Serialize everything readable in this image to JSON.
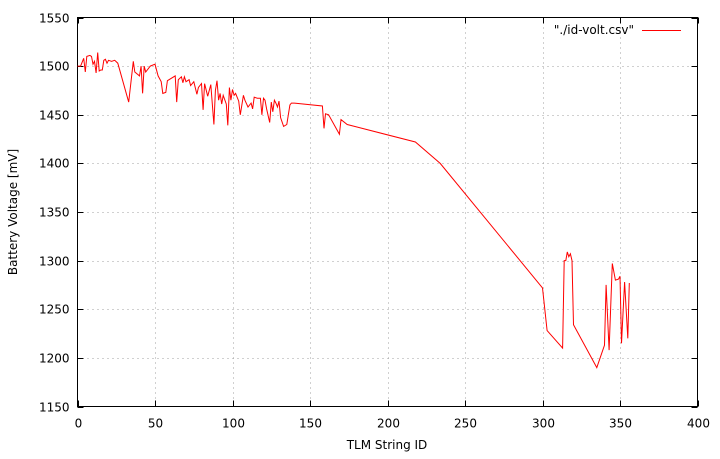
{
  "chart_data": {
    "type": "line",
    "title": "",
    "xlabel": "TLM String ID",
    "ylabel": "Battery Voltage [mV]",
    "xlim": [
      0,
      400
    ],
    "ylim": [
      1150,
      1550
    ],
    "xticks": [
      0,
      50,
      100,
      150,
      200,
      250,
      300,
      350,
      400
    ],
    "yticks": [
      1150,
      1200,
      1250,
      1300,
      1350,
      1400,
      1450,
      1500,
      1550
    ],
    "grid": true,
    "legend_position": "top-right",
    "series": [
      {
        "name": "\"./id-volt.csv\"",
        "color": "#ff0000",
        "points": [
          [
            0,
            1500
          ],
          [
            2,
            1500
          ],
          [
            4,
            1508
          ],
          [
            5,
            1494
          ],
          [
            6,
            1510
          ],
          [
            8,
            1511
          ],
          [
            9,
            1510
          ],
          [
            10,
            1502
          ],
          [
            11,
            1505
          ],
          [
            12,
            1493
          ],
          [
            13,
            1514
          ],
          [
            14,
            1495
          ],
          [
            15,
            1496
          ],
          [
            16,
            1496
          ],
          [
            17,
            1506
          ],
          [
            18,
            1507
          ],
          [
            19,
            1503
          ],
          [
            20,
            1506
          ],
          [
            22,
            1505
          ],
          [
            24,
            1506
          ],
          [
            26,
            1503
          ],
          [
            33,
            1463
          ],
          [
            36,
            1505
          ],
          [
            37,
            1494
          ],
          [
            40,
            1490
          ],
          [
            41,
            1500
          ],
          [
            42,
            1472
          ],
          [
            43,
            1500
          ],
          [
            44,
            1494
          ],
          [
            47,
            1500
          ],
          [
            50,
            1502
          ],
          [
            52,
            1490
          ],
          [
            54,
            1484
          ],
          [
            55,
            1472
          ],
          [
            57,
            1473
          ],
          [
            58,
            1485
          ],
          [
            63,
            1490
          ],
          [
            64,
            1463
          ],
          [
            65,
            1486
          ],
          [
            67,
            1489
          ],
          [
            68,
            1483
          ],
          [
            69,
            1489
          ],
          [
            70,
            1484
          ],
          [
            72,
            1486
          ],
          [
            73,
            1480
          ],
          [
            75,
            1484
          ],
          [
            77,
            1471
          ],
          [
            78,
            1478
          ],
          [
            80,
            1482
          ],
          [
            81,
            1455
          ],
          [
            82,
            1482
          ],
          [
            84,
            1469
          ],
          [
            86,
            1481
          ],
          [
            88,
            1440
          ],
          [
            89,
            1475
          ],
          [
            90,
            1485
          ],
          [
            91,
            1465
          ],
          [
            92,
            1472
          ],
          [
            93,
            1461
          ],
          [
            94,
            1470
          ],
          [
            96,
            1461
          ],
          [
            97,
            1439
          ],
          [
            98,
            1478
          ],
          [
            99,
            1465
          ],
          [
            100,
            1476
          ],
          [
            101,
            1470
          ],
          [
            102,
            1472
          ],
          [
            104,
            1464
          ],
          [
            105,
            1450
          ],
          [
            107,
            1470
          ],
          [
            108,
            1465
          ],
          [
            110,
            1458
          ],
          [
            112,
            1462
          ],
          [
            113,
            1456
          ],
          [
            114,
            1468
          ],
          [
            116,
            1467
          ],
          [
            118,
            1467
          ],
          [
            119,
            1450
          ],
          [
            120,
            1467
          ],
          [
            121,
            1465
          ],
          [
            122,
            1456
          ],
          [
            124,
            1442
          ],
          [
            125,
            1463
          ],
          [
            126,
            1453
          ],
          [
            127,
            1465
          ],
          [
            128,
            1462
          ],
          [
            129,
            1458
          ],
          [
            130,
            1464
          ],
          [
            131,
            1447
          ],
          [
            133,
            1438
          ],
          [
            135,
            1440
          ],
          [
            137,
            1460
          ],
          [
            138,
            1462
          ],
          [
            140,
            1462
          ],
          [
            158,
            1459
          ],
          [
            159,
            1436
          ],
          [
            160,
            1451
          ],
          [
            162,
            1450
          ],
          [
            169,
            1430
          ],
          [
            170,
            1445
          ],
          [
            174,
            1440
          ],
          [
            218,
            1422
          ],
          [
            234,
            1400
          ],
          [
            300,
            1272
          ],
          [
            303,
            1228
          ],
          [
            313,
            1210
          ],
          [
            314,
            1300
          ],
          [
            315,
            1300
          ],
          [
            316,
            1309
          ],
          [
            317,
            1304
          ],
          [
            318,
            1307
          ],
          [
            319,
            1300
          ],
          [
            320,
            1234
          ],
          [
            335,
            1190
          ],
          [
            340,
            1213
          ],
          [
            341,
            1275
          ],
          [
            343,
            1208
          ],
          [
            345,
            1297
          ],
          [
            347,
            1280
          ],
          [
            349,
            1281
          ],
          [
            350,
            1284
          ],
          [
            351,
            1215
          ],
          [
            353,
            1278
          ],
          [
            355,
            1220
          ],
          [
            356,
            1277
          ]
        ]
      }
    ]
  }
}
